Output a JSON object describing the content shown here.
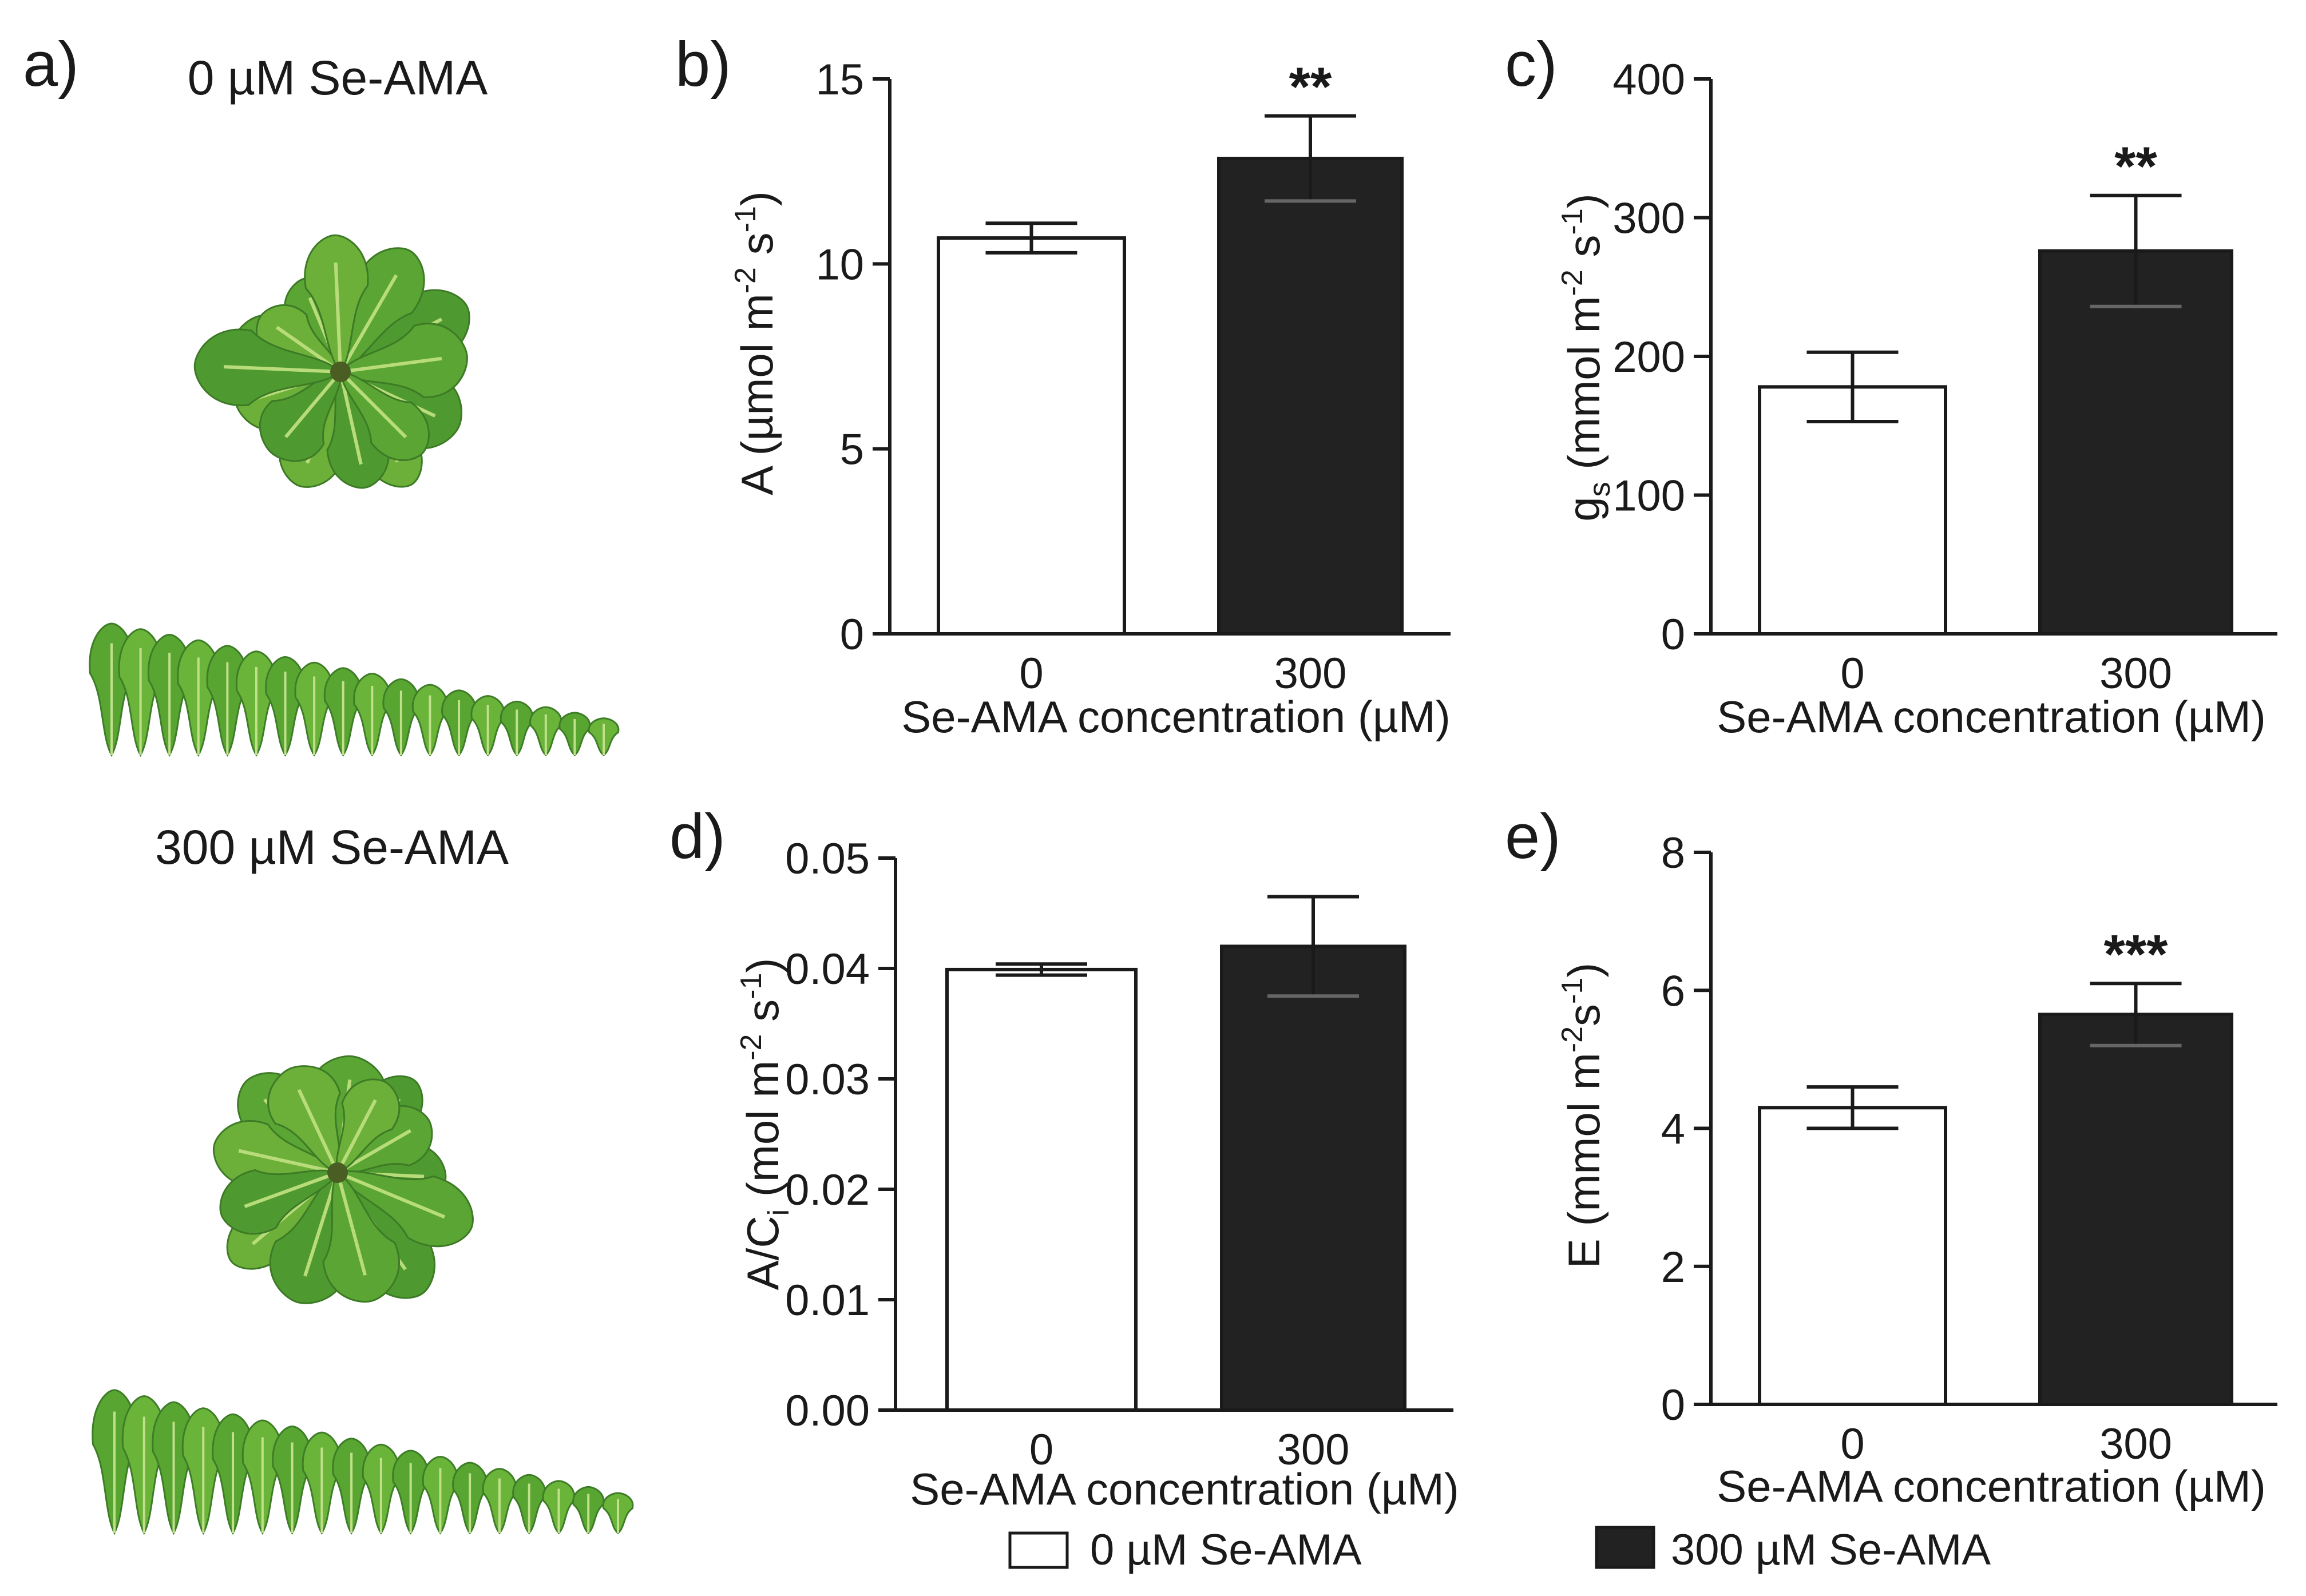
{
  "figure": {
    "panel_labels": [
      "a)",
      "b)",
      "c)",
      "d)",
      "e)"
    ],
    "photo_titles": {
      "top": "0 µM Se-AMA",
      "bottom": "300 µM Se-AMA"
    },
    "legend": [
      {
        "label": "0 µM Se-AMA",
        "color": "#ffffff"
      },
      {
        "label": "300 µM Se-AMA",
        "color": "#222222"
      }
    ],
    "colors": {
      "bar_control": "#ffffff",
      "bar_treated": "#222222",
      "axis": "#1a1a1a",
      "leaf_dark": "#3d8a2a",
      "leaf_light": "#8cc43c"
    }
  },
  "chart_data": [
    {
      "panel": "b)",
      "type": "bar",
      "categories": [
        "0",
        "300"
      ],
      "values": [
        10.7,
        12.85
      ],
      "errors": [
        0.4,
        1.15
      ],
      "significance": [
        "",
        "**"
      ],
      "ylim": [
        0,
        15
      ],
      "yticks": [
        "0",
        "5",
        "10",
        "15"
      ],
      "ylabel": "A (µmol m-2 s-1)",
      "ylabel_parts": {
        "main": "A (µmol m",
        "sup1": "-2",
        "mid": " s",
        "sup2": "-1",
        "end": ")"
      },
      "xlabel": "Se-AMA concentration (µM)"
    },
    {
      "panel": "c)",
      "type": "bar",
      "categories": [
        "0",
        "300"
      ],
      "values": [
        178,
        276
      ],
      "errors": [
        25,
        40
      ],
      "significance": [
        "",
        "**"
      ],
      "ylim": [
        0,
        400
      ],
      "yticks": [
        "0",
        "100",
        "200",
        "300",
        "400"
      ],
      "ylabel": "gs (mmol m-2 s-1)",
      "ylabel_parts": {
        "main": "g",
        "sub": "s",
        "mid": " (mmol m",
        "sup1": "-2",
        "mid2": " s",
        "sup2": "-1",
        "end": ")"
      },
      "xlabel": "Se-AMA concentration (µM)"
    },
    {
      "panel": "d)",
      "type": "bar",
      "categories": [
        "0",
        "300"
      ],
      "values": [
        0.0399,
        0.042
      ],
      "errors": [
        0.0005,
        0.0045
      ],
      "significance": [
        "",
        ""
      ],
      "ylim": [
        0,
        0.05
      ],
      "yticks": [
        "0.00",
        "0.01",
        "0.02",
        "0.03",
        "0.04",
        "0.05"
      ],
      "ylabel": "A/Ci (mol m-2 s-1)",
      "ylabel_parts": {
        "main": "A/C",
        "sub": "i",
        "mid": " (mol m",
        "sup1": "-2",
        "mid2": " s",
        "sup2": "-1",
        "end": ")"
      },
      "xlabel": "Se-AMA concentration (µM)"
    },
    {
      "panel": "e)",
      "type": "bar",
      "categories": [
        "0",
        "300"
      ],
      "values": [
        4.3,
        5.65
      ],
      "errors": [
        0.3,
        0.45
      ],
      "significance": [
        "",
        "***"
      ],
      "ylim": [
        0,
        8
      ],
      "yticks": [
        "0",
        "2",
        "4",
        "6",
        "8"
      ],
      "ylabel": "E (mmol m-2s-1)",
      "ylabel_parts": {
        "main": "E (mmol m",
        "sup1": "-2",
        "mid": "s",
        "sup2": "-1",
        "end": ")"
      },
      "xlabel": "Se-AMA concentration (µM)"
    }
  ]
}
